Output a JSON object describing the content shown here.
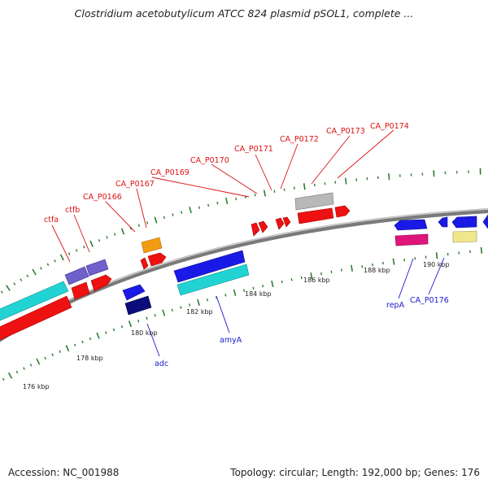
{
  "title": "Clostridium acetobutylicum ATCC 824 plasmid pSOL1, complete ...",
  "footer": {
    "accession": "Accession: NC_001988",
    "summary": "Topology: circular; Length: 192,000 bp; Genes: 176"
  },
  "tick_labels": [
    "176 kbp",
    "178 kbp",
    "180 kbp",
    "182 kbp",
    "184 kbp",
    "186 kbp",
    "188 kbp",
    "190 kbp"
  ],
  "gene_labels": {
    "forward": [
      "ctfa",
      "ctfb",
      "CA_P0166",
      "CA_P0167",
      "CA_P0169",
      "CA_P0170",
      "CA_P0171",
      "CA_P0172",
      "CA_P0173",
      "CA_P0174"
    ],
    "reverse": [
      "adc",
      "amyA",
      "repA",
      "CA_P0176"
    ]
  },
  "colors": {
    "backbone": "#8c8c8c",
    "tick": "#2e7d32",
    "forward_label": "#dd1111",
    "reverse_label": "#1a1acc",
    "red": "#ee1111",
    "blue": "#1a1ae6",
    "cyan": "#22d3d3",
    "purple": "#7060cc",
    "orange": "#f39c12",
    "grey": "#b8b8b8",
    "pink": "#e0157a",
    "navy": "#0c0c7a",
    "yellow": "#f0e68c"
  }
}
